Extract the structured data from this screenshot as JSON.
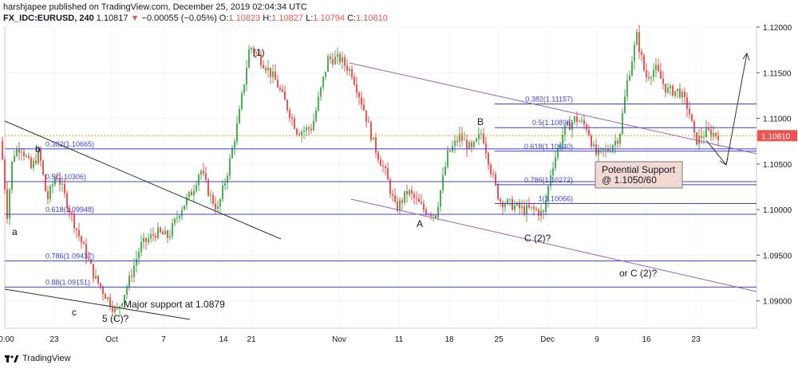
{
  "header": {
    "publisher": "harshjapee",
    "published_text": "published on TradingView.com, December 25, 2019 02:04:34 UTC",
    "symbol": "FX_IDC:EURUSD, 240",
    "last": "1.10817",
    "arrow": "▼",
    "change": "−0.00055 (−0.05%)",
    "o_label": "O:",
    "o": "1.10823",
    "h_label": "H:",
    "h": "1.10827",
    "l_label": "L:",
    "l": "1.10794",
    "c_label": "C:",
    "c": "1.10810"
  },
  "footer": {
    "brand": "TradingView"
  },
  "colors": {
    "up": "#4caf50",
    "down": "#ef5350",
    "fib": "#3f3fd6",
    "channel": "#9c5fb5",
    "trend": "#333333",
    "price_tag": "#ef5350"
  },
  "chart_data": {
    "type": "candlestick",
    "ylim": [
      1.087,
      1.12
    ],
    "x_ticks": [
      "0:00",
      "23",
      "Oct",
      "7",
      "14",
      "21",
      "Nov",
      "11",
      "18",
      "25",
      "Dec",
      "9",
      "16",
      "23"
    ],
    "y_ticks": [
      "1.12000",
      "1.11500",
      "1.11000",
      "1.10500",
      "1.10000",
      "1.09500",
      "1.09000"
    ],
    "current_price": "1.10810",
    "current_value": 1.1081,
    "fib_levels_left": [
      {
        "label": "0.382(1.10665)",
        "value": 1.10665
      },
      {
        "label": "0.5(1.10306)",
        "value": 1.10306
      },
      {
        "label": "0.618(1.09948)",
        "value": 1.09948
      },
      {
        "label": "0.786(1.09437)",
        "value": 1.09437
      },
      {
        "label": "0.88(1.09151)",
        "value": 1.09151
      }
    ],
    "fib_levels_right": [
      {
        "label": "0.382(1.11157)",
        "value": 1.11157
      },
      {
        "label": "0.5(1.10898)",
        "value": 1.10898
      },
      {
        "label": "0.618(1.10640)",
        "value": 1.1064
      },
      {
        "label": "0.786(1.10272)",
        "value": 1.10272
      },
      {
        "label": "1(1.10066)",
        "value": 1.10066
      }
    ],
    "path": [
      [
        0,
        1.1075
      ],
      [
        8,
        1.0995
      ],
      [
        15,
        1.106
      ],
      [
        25,
        1.107
      ],
      [
        38,
        1.1045
      ],
      [
        48,
        1.1063
      ],
      [
        58,
        1.101
      ],
      [
        70,
        1.104
      ],
      [
        90,
        1.099
      ],
      [
        105,
        1.0955
      ],
      [
        118,
        1.0925
      ],
      [
        132,
        1.0905
      ],
      [
        145,
        1.0887
      ],
      [
        160,
        1.092
      ],
      [
        175,
        1.096
      ],
      [
        195,
        1.0975
      ],
      [
        210,
        1.097
      ],
      [
        225,
        1.1
      ],
      [
        240,
        1.102
      ],
      [
        250,
        1.1045
      ],
      [
        262,
        1.1015
      ],
      [
        272,
        1.1
      ],
      [
        285,
        1.1045
      ],
      [
        298,
        1.11
      ],
      [
        312,
        1.118
      ],
      [
        330,
        1.116
      ],
      [
        345,
        1.114
      ],
      [
        360,
        1.111
      ],
      [
        372,
        1.1085
      ],
      [
        390,
        1.109
      ],
      [
        410,
        1.1165
      ],
      [
        425,
        1.1165
      ],
      [
        440,
        1.115
      ],
      [
        455,
        1.111
      ],
      [
        468,
        1.107
      ],
      [
        482,
        1.104
      ],
      [
        495,
        1.1
      ],
      [
        510,
        1.102
      ],
      [
        530,
        1.1
      ],
      [
        545,
        1.0995
      ],
      [
        560,
        1.106
      ],
      [
        575,
        1.108
      ],
      [
        590,
        1.1065
      ],
      [
        603,
        1.1085
      ],
      [
        615,
        1.104
      ],
      [
        625,
        1.101
      ],
      [
        640,
        1.1005
      ],
      [
        655,
        1.1
      ],
      [
        668,
        1.1
      ],
      [
        680,
        1.0995
      ],
      [
        690,
        1.1045
      ],
      [
        705,
        1.1085
      ],
      [
        720,
        1.11
      ],
      [
        735,
        1.109
      ],
      [
        745,
        1.106
      ],
      [
        760,
        1.1065
      ],
      [
        775,
        1.108
      ],
      [
        785,
        1.114
      ],
      [
        797,
        1.119
      ],
      [
        808,
        1.1145
      ],
      [
        820,
        1.1155
      ],
      [
        835,
        1.113
      ],
      [
        850,
        1.113
      ],
      [
        862,
        1.111
      ],
      [
        870,
        1.1075
      ],
      [
        885,
        1.1085
      ],
      [
        900,
        1.1082
      ]
    ]
  },
  "annotations": {
    "wave_1": "(1)",
    "wave_b": "b",
    "wave_a": "a",
    "wave_c": "c",
    "wave_5c": "5 (C)?",
    "major_support": "Major support at 1.0879",
    "label_A": "A",
    "label_B": "B",
    "label_C2": "C (2)?",
    "or_c2": "or C (2)?",
    "potential_support_1": "Potential Support",
    "potential_support_2": "@ 1.1050/60"
  }
}
